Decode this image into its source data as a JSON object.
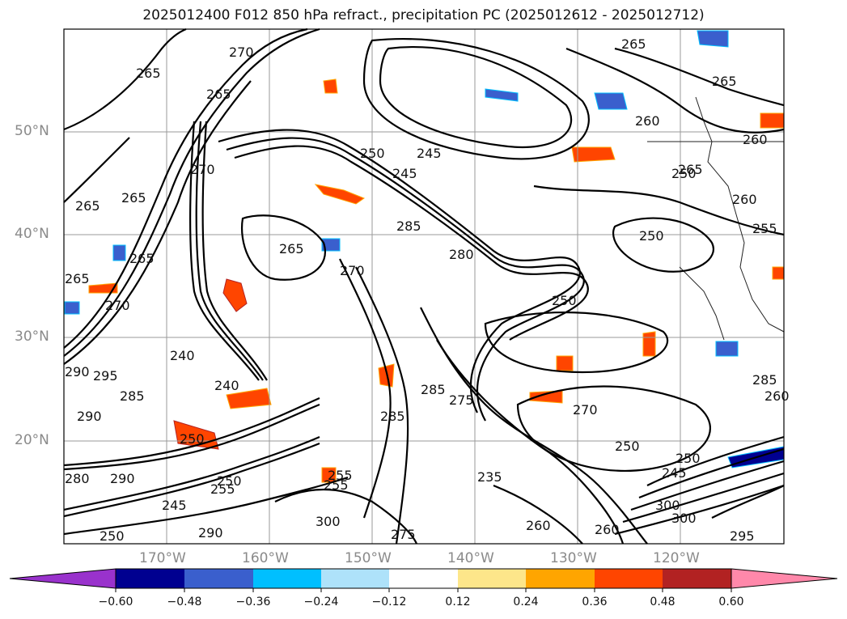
{
  "title": "2025012400 F012 850 hPa refract., precipitation PC (2025012612 - 2025012712)",
  "lat_labels": [
    "50°N",
    "40°N",
    "30°N",
    "20°N"
  ],
  "lon_labels": [
    "170°W",
    "160°W",
    "150°W",
    "140°W",
    "130°W",
    "120°W"
  ],
  "colorbar": {
    "ticks": [
      "−0.60",
      "−0.48",
      "−0.36",
      "−0.24",
      "−0.12",
      "0.12",
      "0.24",
      "0.36",
      "0.48",
      "0.60"
    ],
    "colors": [
      "#9932cc",
      "#000090",
      "#3a5fcd",
      "#00bfff",
      "#aee2fa",
      "#ffffff",
      "#fde68a",
      "#ffa500",
      "#ff4500",
      "#b22222",
      "#ff88aa"
    ]
  },
  "contour_labels": [
    "265",
    "270",
    "265",
    "265",
    "265",
    "265",
    "270",
    "265",
    "240",
    "245",
    "250",
    "260",
    "265",
    "260",
    "250",
    "265",
    "250",
    "245",
    "285",
    "280",
    "270",
    "265",
    "255",
    "260",
    "250",
    "250",
    "285",
    "275",
    "290",
    "295",
    "285",
    "290",
    "280",
    "270",
    "250",
    "255",
    "235",
    "240",
    "250",
    "255",
    "260",
    "245",
    "290",
    "300",
    "275",
    "285",
    "300",
    "295",
    "290",
    "250",
    "260",
    "265",
    "270",
    "260",
    "300",
    "285",
    "245",
    "250",
    "255"
  ]
}
